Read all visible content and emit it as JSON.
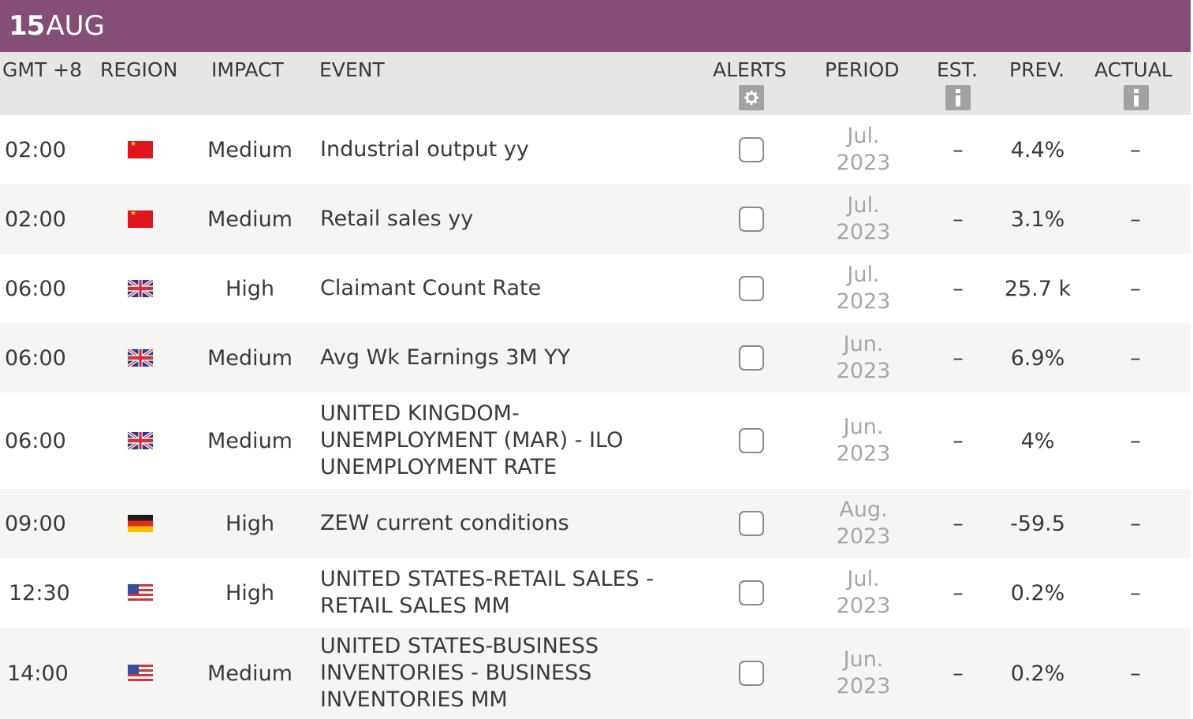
{
  "header": {
    "day": "15",
    "month": "AUG"
  },
  "columns": {
    "time": "GMT +8",
    "region": "REGION",
    "impact": "IMPACT",
    "event": "EVENT",
    "alerts": "ALERTS",
    "period": "PERIOD",
    "est": "EST.",
    "prev": "PREV.",
    "actual": "ACTUAL"
  },
  "icons": {
    "alerts_settings": "gear-icon",
    "est_info": "info-icon",
    "actual_info": "info-icon"
  },
  "colors": {
    "header_bar": "#844e77",
    "table_header": "#e6e6e6",
    "alt_row": "#f5f5f3",
    "period_text": "#a6a6a6"
  },
  "rows": [
    {
      "time": "02:00",
      "region": "china-flag",
      "impact": "Medium",
      "event": "Industrial output yy",
      "period_month": "Jul.",
      "period_year": "2023",
      "est": "–",
      "prev": "4.4%",
      "actual": "–"
    },
    {
      "time": "02:00",
      "region": "china-flag",
      "impact": "Medium",
      "event": "Retail sales yy",
      "period_month": "Jul.",
      "period_year": "2023",
      "est": "–",
      "prev": "3.1%",
      "actual": "–"
    },
    {
      "time": "06:00",
      "region": "uk-flag",
      "impact": "High",
      "event": "Claimant Count Rate",
      "period_month": "Jul.",
      "period_year": "2023",
      "est": "–",
      "prev": "25.7 k",
      "actual": "–"
    },
    {
      "time": "06:00",
      "region": "uk-flag",
      "impact": "Medium",
      "event": "Avg Wk Earnings 3M YY",
      "period_month": "Jun.",
      "period_year": "2023",
      "est": "–",
      "prev": "6.9%",
      "actual": "–"
    },
    {
      "time": "06:00",
      "region": "uk-flag",
      "impact": "Medium",
      "event": "UNITED KINGDOM-UNEMPLOYMENT (MAR) - ILO UNEMPLOYMENT RATE",
      "period_month": "Jun.",
      "period_year": "2023",
      "est": "–",
      "prev": "4%",
      "actual": "–"
    },
    {
      "time": "09:00",
      "region": "germany-flag",
      "impact": "High",
      "event": "ZEW current conditions",
      "period_month": "Aug.",
      "period_year": "2023",
      "est": "–",
      "prev": "-59.5",
      "actual": "–"
    },
    {
      "time": "12:30",
      "region": "us-flag",
      "impact": "High",
      "event": "UNITED STATES-RETAIL SALES - RETAIL SALES MM",
      "period_month": "Jul.",
      "period_year": "2023",
      "est": "–",
      "prev": "0.2%",
      "actual": "–"
    },
    {
      "time": "14:00",
      "region": "us-flag",
      "impact": "Medium",
      "event": "UNITED STATES-BUSINESS INVENTORIES - BUSINESS INVENTORIES MM",
      "period_month": "Jun.",
      "period_year": "2023",
      "est": "–",
      "prev": "0.2%",
      "actual": "–"
    }
  ]
}
